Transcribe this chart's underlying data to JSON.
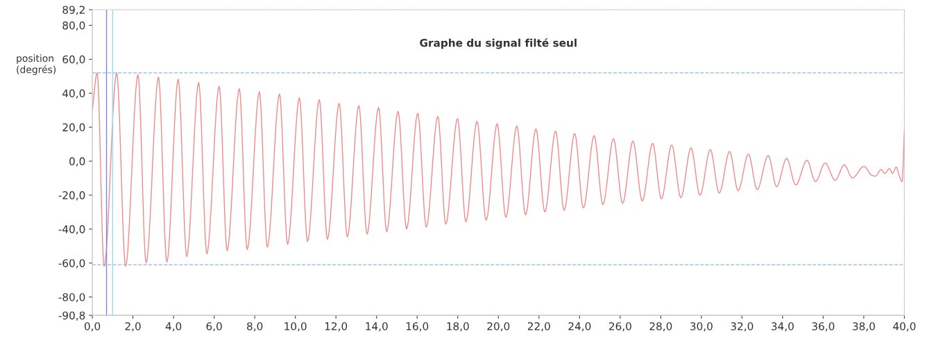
{
  "chart_data": {
    "type": "line",
    "title": "Graphe du signal filté seul",
    "ylabel": "position\n(degrés)",
    "x": [
      0,
      0.24,
      0.58,
      1.2,
      1.64,
      2.25,
      2.65,
      3.26,
      3.67,
      4.23,
      4.65,
      5.24,
      5.64,
      6.25,
      6.64,
      7.24,
      7.63,
      8.23,
      8.62,
      9.22,
      9.62,
      10.2,
      10.6,
      11.18,
      11.58,
      12.16,
      12.56,
      13.13,
      13.53,
      14.1,
      14.5,
      15.06,
      15.48,
      16.03,
      16.45,
      17.02,
      17.41,
      17.99,
      18.4,
      18.95,
      19.4,
      19.94,
      20.37,
      20.91,
      21.34,
      21.85,
      22.29,
      22.82,
      23.24,
      23.76,
      24.19,
      24.72,
      25.15,
      25.67,
      26.12,
      26.63,
      27.09,
      27.6,
      28.03,
      28.54,
      28.99,
      29.49,
      29.93,
      30.44,
      30.88,
      31.39,
      31.81,
      32.32,
      32.75,
      33.29,
      33.71,
      34.2,
      34.65,
      35.2,
      35.62,
      36.1,
      36.59,
      37.04,
      37.44,
      38.01,
      38.4,
      38.58,
      38.86,
      39.03,
      39.26,
      39.41,
      39.6,
      39.74,
      39.89,
      40
    ],
    "series": [
      {
        "color": "#f08a8a",
        "values": [
          30,
          52,
          -62,
          52,
          -62,
          51,
          -60,
          49.5,
          -59.6,
          48.2,
          -56.2,
          46.3,
          -54.6,
          44.1,
          -52.8,
          42.7,
          -52.1,
          40.8,
          -50.7,
          39.5,
          -49,
          37.3,
          -47.3,
          36.3,
          -46,
          34,
          -44.6,
          32.7,
          -43,
          31.6,
          -41.6,
          29.3,
          -39.9,
          28.2,
          -38.9,
          26.4,
          -37.1,
          25,
          -35.8,
          23.4,
          -34.8,
          22,
          -33.1,
          20.7,
          -31.7,
          19,
          -29.9,
          17.7,
          -29,
          16.3,
          -27.6,
          15,
          -25.6,
          13.2,
          -24.9,
          11.8,
          -23.5,
          10.5,
          -22.2,
          9.5,
          -21.5,
          7.8,
          -20.1,
          6.8,
          -18.8,
          5.7,
          -17.4,
          4.1,
          -16.7,
          3.3,
          -15,
          1.6,
          -14,
          0.5,
          -12,
          -1.1,
          -11.3,
          -2.2,
          -9.9,
          -3.1,
          -8.4,
          -8.8,
          -4.9,
          -7.2,
          -4.4,
          -7.2,
          -3.5,
          -8.3,
          -12,
          18
        ]
      }
    ],
    "xlim": [
      0,
      40
    ],
    "xticks": [
      {
        "value": 0,
        "label": "0,0"
      },
      {
        "value": 2,
        "label": "2,0"
      },
      {
        "value": 4,
        "label": "4,0"
      },
      {
        "value": 6,
        "label": "6,0"
      },
      {
        "value": 8,
        "label": "8,0"
      },
      {
        "value": 10,
        "label": "10,0"
      },
      {
        "value": 12,
        "label": "12,0"
      },
      {
        "value": 14,
        "label": "14,0"
      },
      {
        "value": 16,
        "label": "16,0"
      },
      {
        "value": 18,
        "label": "18,0"
      },
      {
        "value": 20,
        "label": "20,0"
      },
      {
        "value": 22,
        "label": "22,0"
      },
      {
        "value": 24,
        "label": "24,0"
      },
      {
        "value": 26,
        "label": "26,0"
      },
      {
        "value": 28,
        "label": "28,0"
      },
      {
        "value": 30,
        "label": "30,0"
      },
      {
        "value": 32,
        "label": "32,0"
      },
      {
        "value": 34,
        "label": "34,0"
      },
      {
        "value": 36,
        "label": "36,0"
      },
      {
        "value": 38,
        "label": "38,0"
      },
      {
        "value": 40,
        "label": "40,0"
      }
    ],
    "ylim": [
      -90.8,
      89.2
    ],
    "yticks": [
      {
        "value": -90.8,
        "label": "-90,8"
      },
      {
        "value": -80,
        "label": "-80,0"
      },
      {
        "value": -60,
        "label": "-60,0"
      },
      {
        "value": -40,
        "label": "-40,0"
      },
      {
        "value": -20,
        "label": "-20,0"
      },
      {
        "value": 0,
        "label": "0,0"
      },
      {
        "value": 20,
        "label": "20,0"
      },
      {
        "value": 40,
        "label": "40,0"
      },
      {
        "value": 60,
        "label": "60,0"
      },
      {
        "value": 80,
        "label": "80,0"
      },
      {
        "value": 89.2,
        "label": "89,2"
      }
    ],
    "ref_lines": [
      {
        "axis": "y",
        "value": 52,
        "color": "#8ab8e8",
        "line_style": "dashed"
      },
      {
        "axis": "y",
        "value": -61,
        "color": "#8ab8e8",
        "line_style": "dashed"
      },
      {
        "axis": "x",
        "value": 0.7,
        "color": "#7f86e0",
        "line_style": "solid"
      },
      {
        "axis": "x",
        "value": 1.0,
        "color": "#93dcf2",
        "line_style": "solid"
      }
    ],
    "grid": false,
    "legend": false,
    "marker": "none",
    "line_style": "solid"
  }
}
